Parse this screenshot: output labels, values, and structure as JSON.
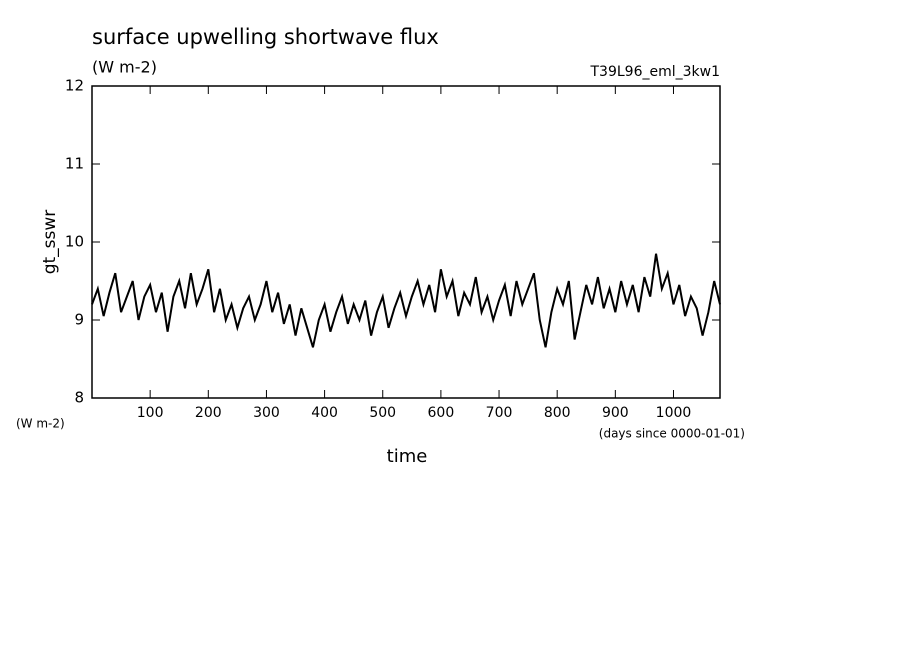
{
  "chart_data": {
    "type": "line",
    "title": "surface upwelling shortwave flux",
    "subtitle": "(W m-2)",
    "run_label": "T39L96_eml_3kw1",
    "y_label": "gt_sswr",
    "y_units": "(W m-2)",
    "x_label": "time",
    "x_units": "(days since 0000-01-01)",
    "x": [
      0,
      10,
      20,
      30,
      40,
      50,
      60,
      70,
      80,
      90,
      100,
      110,
      120,
      130,
      140,
      150,
      160,
      170,
      180,
      190,
      200,
      210,
      220,
      230,
      240,
      250,
      260,
      270,
      280,
      290,
      300,
      310,
      320,
      330,
      340,
      350,
      360,
      370,
      380,
      390,
      400,
      410,
      420,
      430,
      440,
      450,
      460,
      470,
      480,
      490,
      500,
      510,
      520,
      530,
      540,
      550,
      560,
      570,
      580,
      590,
      600,
      610,
      620,
      630,
      640,
      650,
      660,
      670,
      680,
      690,
      700,
      710,
      720,
      730,
      740,
      750,
      760,
      770,
      780,
      790,
      800,
      810,
      820,
      830,
      840,
      850,
      860,
      870,
      880,
      890,
      900,
      910,
      920,
      930,
      940,
      950,
      960,
      970,
      980,
      990,
      1000,
      1010,
      1020,
      1030,
      1040,
      1050,
      1060,
      1070,
      1080
    ],
    "series": [
      {
        "color": "#000000",
        "values": [
          9.2,
          9.4,
          9.05,
          9.35,
          9.6,
          9.1,
          9.3,
          9.5,
          9.0,
          9.3,
          9.45,
          9.1,
          9.35,
          8.85,
          9.3,
          9.5,
          9.15,
          9.6,
          9.2,
          9.4,
          9.65,
          9.1,
          9.4,
          9.0,
          9.2,
          8.9,
          9.15,
          9.3,
          9.0,
          9.2,
          9.5,
          9.1,
          9.35,
          8.95,
          9.2,
          8.8,
          9.15,
          8.9,
          8.65,
          9.0,
          9.2,
          8.85,
          9.1,
          9.3,
          8.95,
          9.2,
          9.0,
          9.25,
          8.8,
          9.1,
          9.3,
          8.9,
          9.15,
          9.35,
          9.05,
          9.3,
          9.5,
          9.2,
          9.45,
          9.1,
          9.65,
          9.3,
          9.5,
          9.05,
          9.35,
          9.2,
          9.55,
          9.1,
          9.3,
          9.0,
          9.25,
          9.45,
          9.05,
          9.5,
          9.2,
          9.4,
          9.6,
          9.0,
          8.65,
          9.1,
          9.4,
          9.2,
          9.5,
          8.75,
          9.1,
          9.45,
          9.2,
          9.55,
          9.15,
          9.4,
          9.1,
          9.5,
          9.2,
          9.45,
          9.1,
          9.55,
          9.3,
          9.85,
          9.4,
          9.6,
          9.2,
          9.45,
          9.05,
          9.3,
          9.15,
          8.8,
          9.1,
          9.5,
          9.2
        ]
      }
    ],
    "xlim": [
      0,
      1080
    ],
    "ylim": [
      8,
      12
    ],
    "xticks": [
      100,
      200,
      300,
      400,
      500,
      600,
      700,
      800,
      900,
      1000
    ],
    "yticks": [
      8,
      9,
      10,
      11,
      12
    ]
  }
}
